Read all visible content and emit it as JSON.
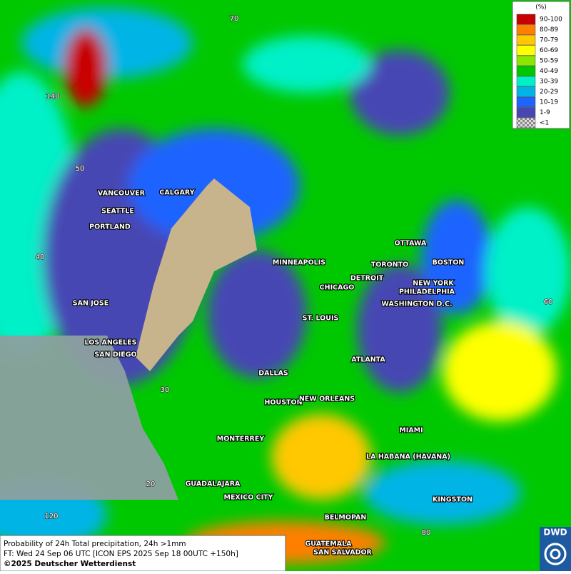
{
  "title_line": "Probability of 24h Total precipitation, 24h >1mm",
  "forecast_line": "FT: Wed 24 Sep 06 UTC [ICON EPS 2025 Sep 18 00UTC +150h]",
  "copyright": "©2025 Deutscher Wetterdienst",
  "logo": "DWD",
  "legend": {
    "unit": "(%)",
    "items": [
      {
        "label": "90-100",
        "color": "#c80000"
      },
      {
        "label": "80-89",
        "color": "#ff7f00"
      },
      {
        "label": "70-79",
        "color": "#ffc800"
      },
      {
        "label": "60-69",
        "color": "#ffff00"
      },
      {
        "label": "50-59",
        "color": "#8ce600"
      },
      {
        "label": "40-49",
        "color": "#00c800"
      },
      {
        "label": "30-39",
        "color": "#00f0c8"
      },
      {
        "label": "20-29",
        "color": "#00b4e6"
      },
      {
        "label": "10-19",
        "color": "#1e64ff"
      },
      {
        "label": "1-9",
        "color": "#4646b4"
      },
      {
        "label": "<1",
        "color": "#b4b4b4"
      }
    ]
  },
  "cities": [
    "VANCOUVER",
    "CALGARY",
    "SEATTLE",
    "PORTLAND",
    "SAN JOSE",
    "LOS ANGELES",
    "SAN DIEGO",
    "DALLAS",
    "HOUSTON",
    "NEW ORLEANS",
    "MONTERREY",
    "GUADALAJARA",
    "MEXICO CITY",
    "BELMOPAN",
    "GUATEMALA",
    "SAN SALVADOR",
    "LA HABANA (HAVANA)",
    "KINGSTON",
    "MIAMI",
    "ATLANTA",
    "ST. LOUIS",
    "CHICAGO",
    "DETROIT",
    "MINNEAPOLIS",
    "TORONTO",
    "OTTAWA",
    "BOSTON",
    "NEW YORK",
    "PHILADELPHIA",
    "WASHINGTON D.C."
  ],
  "grid_labels": [
    "70",
    "140",
    "50",
    "40",
    "60",
    "30",
    "20",
    "120",
    "80"
  ]
}
